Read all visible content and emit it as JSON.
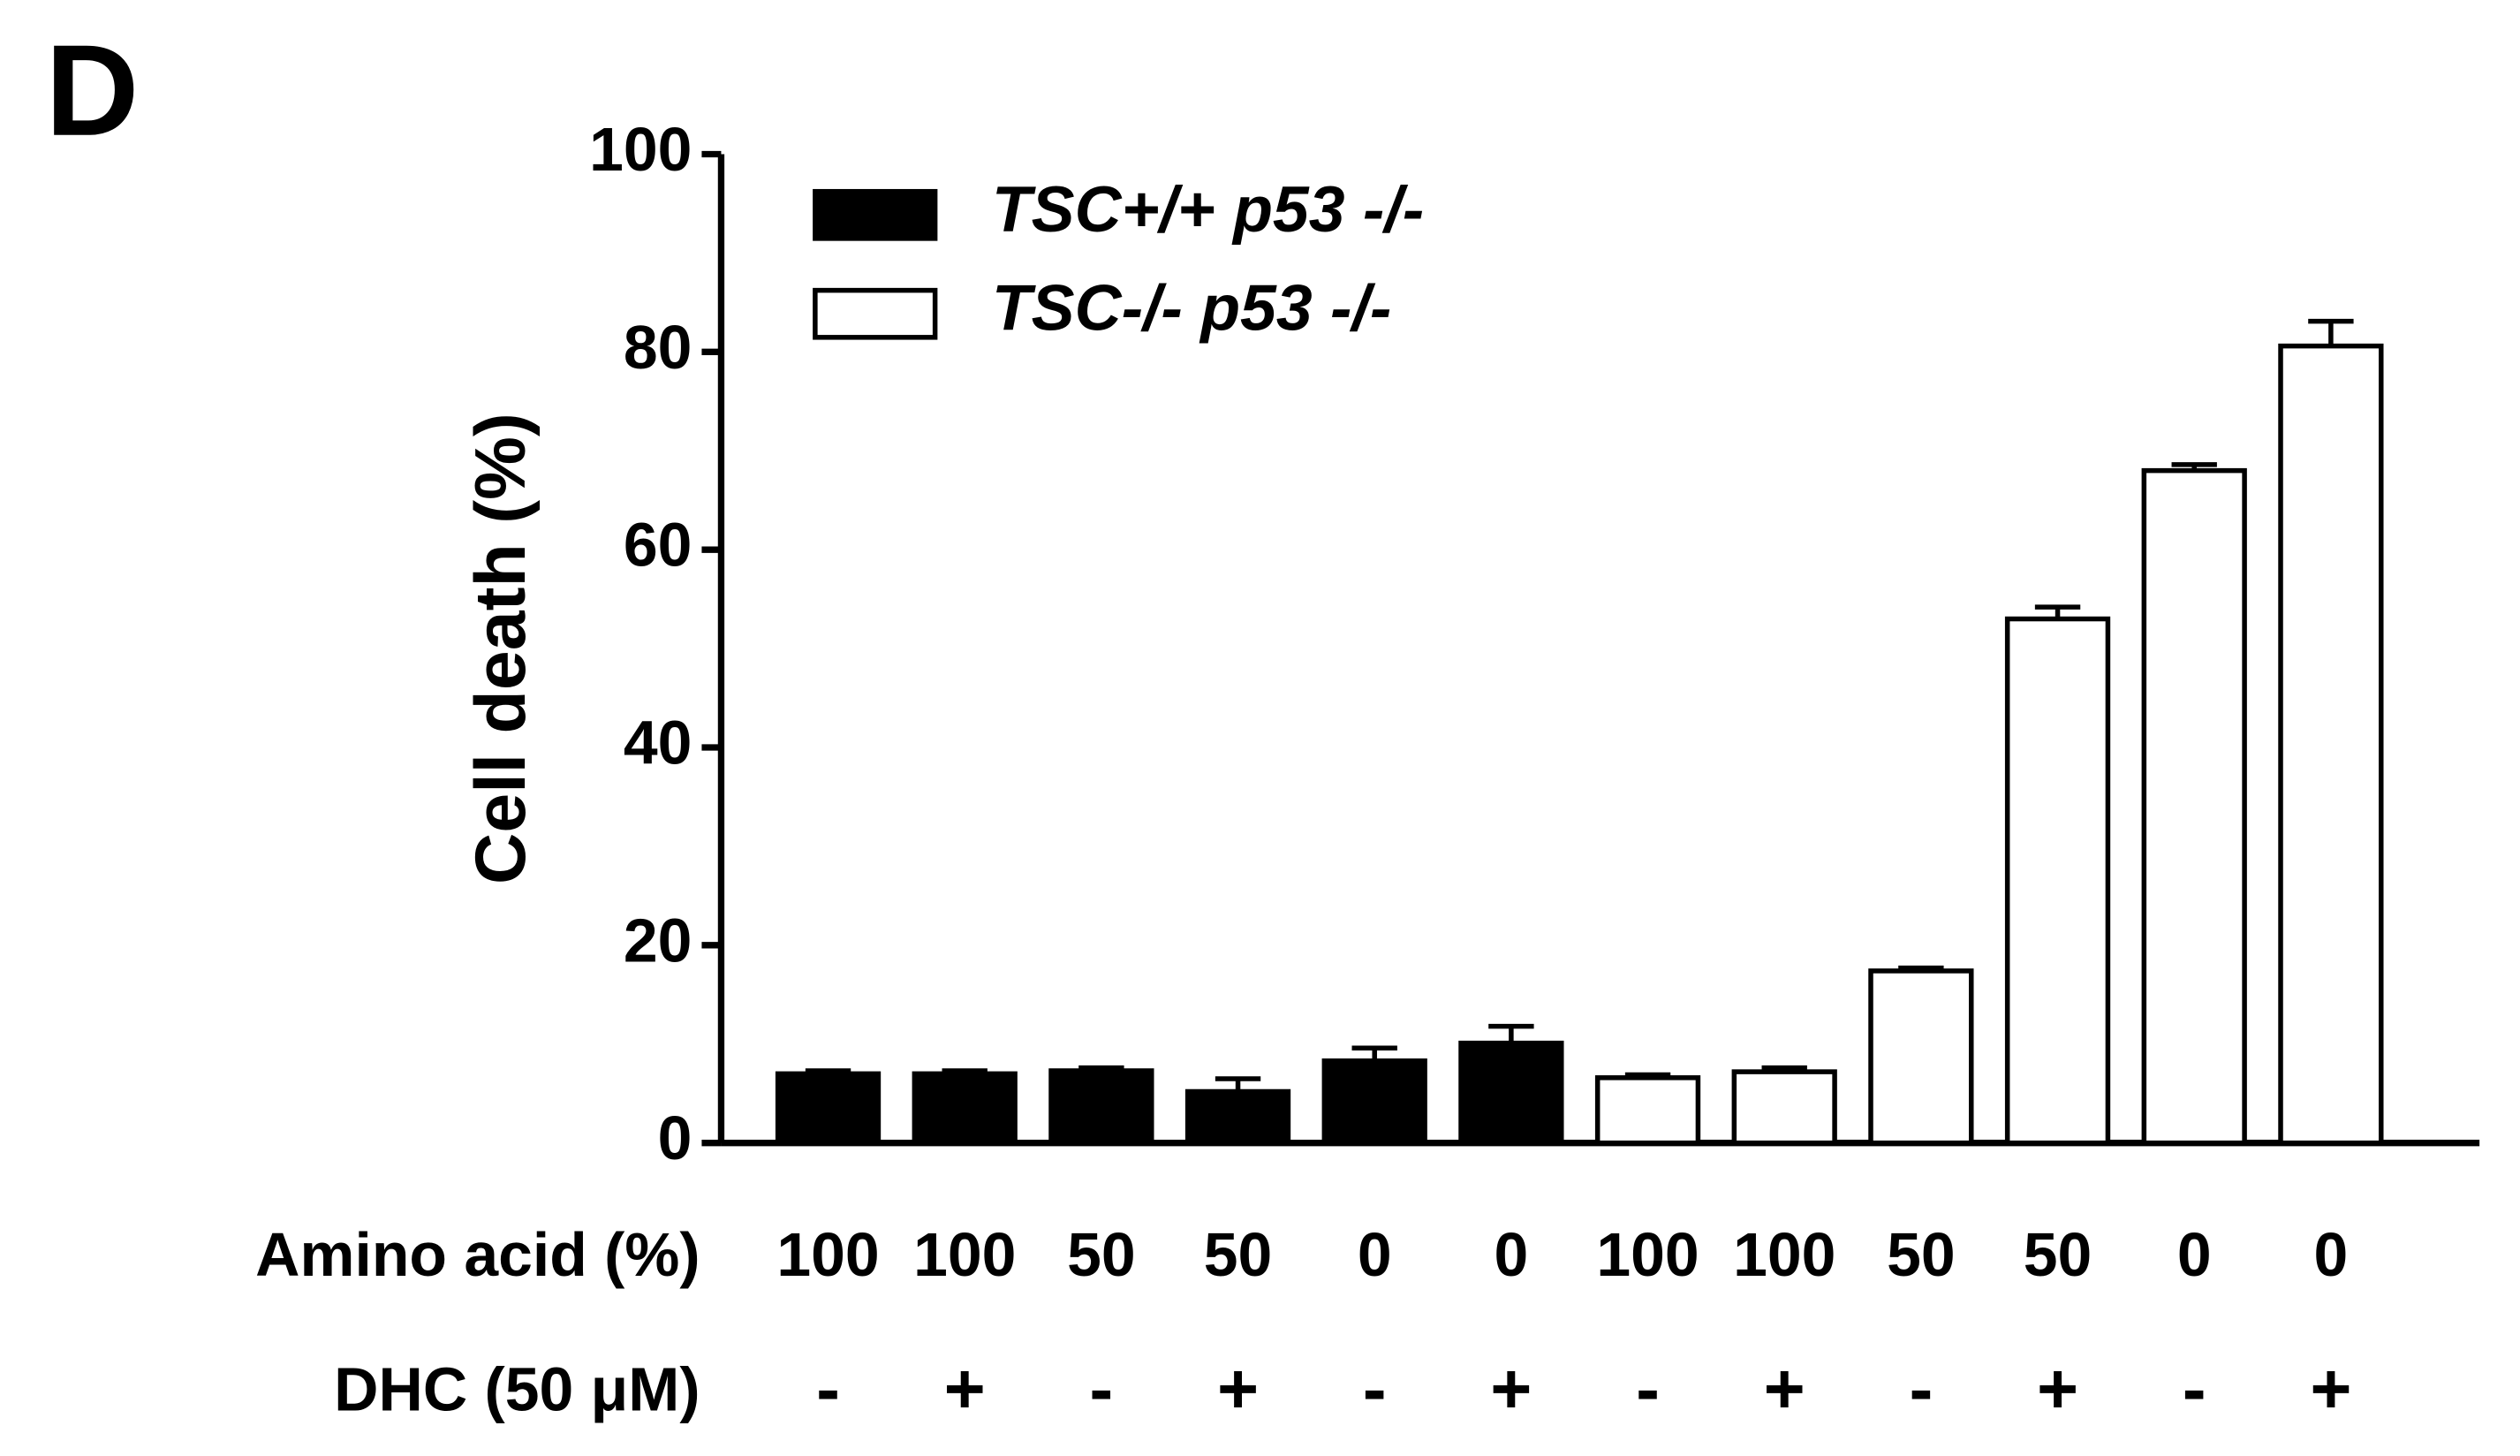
{
  "chart_data": {
    "type": "bar",
    "panel_label": "D",
    "y_label": "Cell death (%)",
    "row_labels": [
      "Amino acid (%)",
      "DHC (50 μM)"
    ],
    "categories": [
      "100",
      "100",
      "50",
      "50",
      "0",
      "0",
      "100",
      "100",
      "50",
      "50",
      "0",
      "0"
    ],
    "dhc": [
      "-",
      "+",
      "-",
      "+",
      "-",
      "+",
      "-",
      "+",
      "-",
      "+",
      "-",
      "+"
    ],
    "series": [
      {
        "name": "TSC+/+ p53 -/-",
        "color": "#000000",
        "values": [
          7,
          7,
          7.3,
          5.2,
          8.3,
          10.1,
          null,
          null,
          null,
          null,
          null,
          null
        ],
        "errors": [
          0.3,
          0.3,
          0.3,
          1.3,
          1.3,
          1.7,
          null,
          null,
          null,
          null,
          null,
          null
        ]
      },
      {
        "name": "TSC-/- p53 -/-",
        "color": "#ffffff",
        "values": [
          null,
          null,
          null,
          null,
          null,
          null,
          6.6,
          7.2,
          17.4,
          53,
          68,
          80.6
        ],
        "errors": [
          null,
          null,
          null,
          null,
          null,
          null,
          0.3,
          0.4,
          0.3,
          1.2,
          0.6,
          2.5
        ]
      }
    ],
    "ylim": [
      0,
      100
    ],
    "yticks": [
      0,
      20,
      40,
      60,
      80,
      100
    ]
  }
}
